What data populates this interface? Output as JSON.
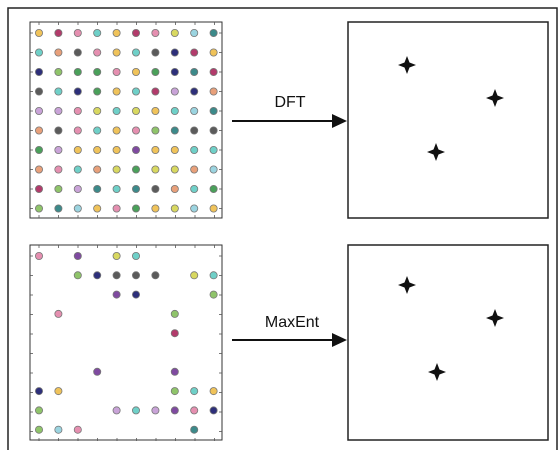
{
  "top": {
    "label": "DFT"
  },
  "bottom": {
    "label": "MaxEnt"
  }
}
